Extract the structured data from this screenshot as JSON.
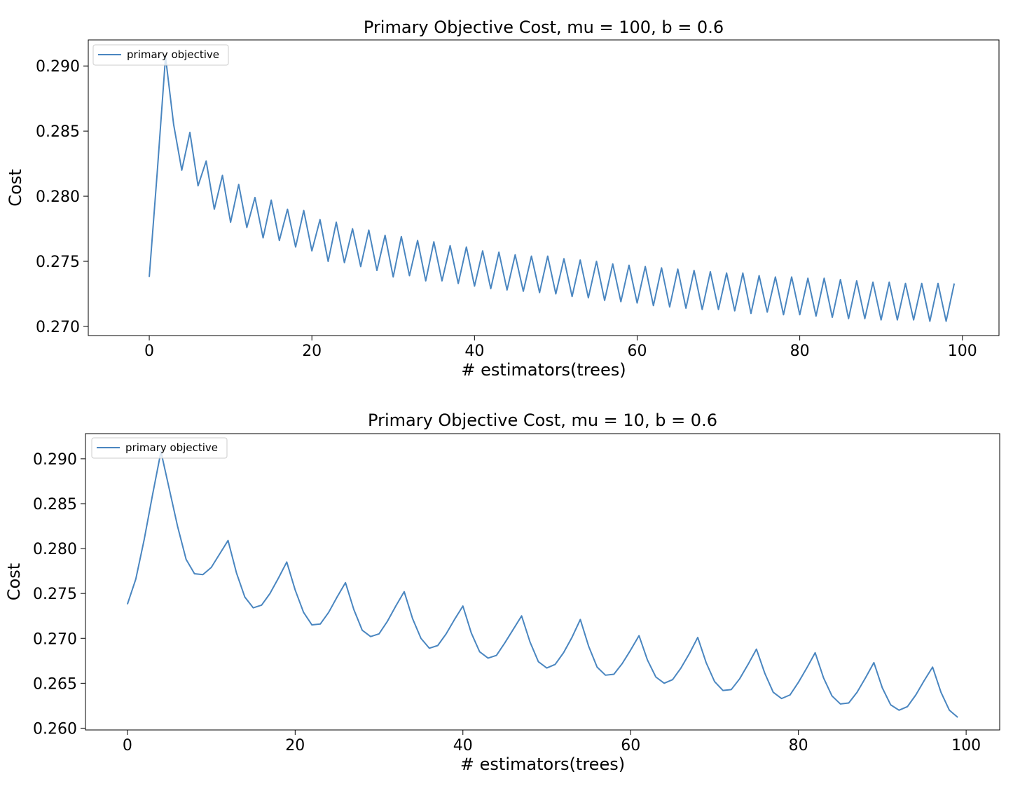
{
  "chart_data": [
    {
      "type": "line",
      "title": "Primary Objective Cost, mu = 100, b = 0.6",
      "xlabel": "# estimators(trees)",
      "ylabel": "Cost",
      "xlim": [
        -7.5,
        104.5
      ],
      "ylim": [
        0.2693,
        0.292
      ],
      "xticks": [
        0,
        20,
        40,
        60,
        80,
        100
      ],
      "xtick_labels": [
        "0",
        "20",
        "40",
        "60",
        "80",
        "100"
      ],
      "yticks": [
        0.27,
        0.275,
        0.28,
        0.285,
        0.29
      ],
      "ytick_labels": [
        "0.270",
        "0.275",
        "0.280",
        "0.285",
        "0.290"
      ],
      "grid": false,
      "legend_position": "top-left",
      "color": "#4a86c0",
      "series": [
        {
          "name": "primary objective",
          "x": [
            0,
            1,
            2,
            3,
            4,
            5,
            6,
            7,
            8,
            9,
            10,
            11,
            12,
            13,
            14,
            15,
            16,
            17,
            18,
            19,
            20,
            21,
            22,
            23,
            24,
            25,
            26,
            27,
            28,
            29,
            30,
            31,
            32,
            33,
            34,
            35,
            36,
            37,
            38,
            39,
            40,
            41,
            42,
            43,
            44,
            45,
            46,
            47,
            48,
            49,
            50,
            51,
            52,
            53,
            54,
            55,
            56,
            57,
            58,
            59,
            60,
            61,
            62,
            63,
            64,
            65,
            66,
            67,
            68,
            69,
            70,
            71,
            72,
            73,
            74,
            75,
            76,
            77,
            78,
            79,
            80,
            81,
            82,
            83,
            84,
            85,
            86,
            87,
            88,
            89,
            90,
            91,
            92,
            93,
            94,
            95,
            96,
            97,
            98,
            99
          ],
          "y": [
            0.2738,
            0.282,
            0.2907,
            0.2855,
            0.282,
            0.2849,
            0.2808,
            0.2827,
            0.279,
            0.2816,
            0.278,
            0.2809,
            0.2776,
            0.2799,
            0.2768,
            0.2797,
            0.2766,
            0.279,
            0.2761,
            0.2789,
            0.2758,
            0.2782,
            0.275,
            0.278,
            0.2749,
            0.2775,
            0.2746,
            0.2774,
            0.2743,
            0.277,
            0.2738,
            0.2769,
            0.2739,
            0.2766,
            0.2735,
            0.2765,
            0.2735,
            0.2762,
            0.2733,
            0.2761,
            0.2731,
            0.2758,
            0.2729,
            0.2757,
            0.2728,
            0.2755,
            0.2727,
            0.2754,
            0.2726,
            0.2754,
            0.2725,
            0.2752,
            0.2723,
            0.2751,
            0.2722,
            0.275,
            0.272,
            0.2748,
            0.2719,
            0.2747,
            0.2718,
            0.2746,
            0.2716,
            0.2745,
            0.2715,
            0.2744,
            0.2714,
            0.2743,
            0.2713,
            0.2742,
            0.2713,
            0.2741,
            0.2712,
            0.2741,
            0.271,
            0.2739,
            0.2711,
            0.2738,
            0.2709,
            0.2738,
            0.2709,
            0.2737,
            0.2708,
            0.2737,
            0.2707,
            0.2736,
            0.2706,
            0.2735,
            0.2706,
            0.2734,
            0.2705,
            0.2734,
            0.2705,
            0.2733,
            0.2705,
            0.2733,
            0.2704,
            0.2733,
            0.2704,
            0.2733
          ]
        }
      ]
    },
    {
      "type": "line",
      "title": "Primary Objective Cost, mu = 10, b = 0.6",
      "xlabel": "# estimators(trees)",
      "ylabel": "Cost",
      "xlim": [
        -5,
        104
      ],
      "ylim": [
        0.2598,
        0.2928
      ],
      "xticks": [
        0,
        20,
        40,
        60,
        80,
        100
      ],
      "xtick_labels": [
        "0",
        "20",
        "40",
        "60",
        "80",
        "100"
      ],
      "yticks": [
        0.26,
        0.265,
        0.27,
        0.275,
        0.28,
        0.285,
        0.29
      ],
      "ytick_labels": [
        "0.260",
        "0.265",
        "0.270",
        "0.275",
        "0.280",
        "0.285",
        "0.290"
      ],
      "grid": false,
      "legend_position": "top-left",
      "color": "#4a86c0",
      "series": [
        {
          "name": "primary objective",
          "x": [
            0,
            1,
            2,
            3,
            4,
            5,
            6,
            7,
            8,
            9,
            10,
            11,
            12,
            13,
            14,
            15,
            16,
            17,
            18,
            19,
            20,
            21,
            22,
            23,
            24,
            25,
            26,
            27,
            28,
            29,
            30,
            31,
            32,
            33,
            34,
            35,
            36,
            37,
            38,
            39,
            40,
            41,
            42,
            43,
            44,
            45,
            46,
            47,
            48,
            49,
            50,
            51,
            52,
            53,
            54,
            55,
            56,
            57,
            58,
            59,
            60,
            61,
            62,
            63,
            64,
            65,
            66,
            67,
            68,
            69,
            70,
            71,
            72,
            73,
            74,
            75,
            76,
            77,
            78,
            79,
            80,
            81,
            82,
            83,
            84,
            85,
            86,
            87,
            88,
            89,
            90,
            91,
            92,
            93,
            94,
            95,
            96,
            97,
            98,
            99
          ],
          "y": [
            0.2738,
            0.2766,
            0.281,
            0.286,
            0.2908,
            0.2866,
            0.2824,
            0.2788,
            0.2772,
            0.2771,
            0.2779,
            0.2794,
            0.2809,
            0.2773,
            0.2746,
            0.2734,
            0.2737,
            0.275,
            0.2767,
            0.2785,
            0.2754,
            0.2729,
            0.2715,
            0.2716,
            0.2729,
            0.2746,
            0.2762,
            0.2732,
            0.2709,
            0.2702,
            0.2705,
            0.2719,
            0.2736,
            0.2752,
            0.2722,
            0.27,
            0.2689,
            0.2692,
            0.2705,
            0.2721,
            0.2736,
            0.2706,
            0.2685,
            0.2678,
            0.2681,
            0.2695,
            0.271,
            0.2725,
            0.2696,
            0.2674,
            0.2667,
            0.2671,
            0.2684,
            0.2701,
            0.2721,
            0.2691,
            0.2668,
            0.2659,
            0.266,
            0.2672,
            0.2687,
            0.2703,
            0.2676,
            0.2657,
            0.265,
            0.2654,
            0.2667,
            0.2683,
            0.2701,
            0.2673,
            0.2652,
            0.2642,
            0.2643,
            0.2655,
            0.2671,
            0.2688,
            0.2661,
            0.264,
            0.2633,
            0.2637,
            0.2651,
            0.2667,
            0.2684,
            0.2656,
            0.2636,
            0.2627,
            0.2628,
            0.264,
            0.2656,
            0.2673,
            0.2645,
            0.2626,
            0.262,
            0.2624,
            0.2637,
            0.2653,
            0.2668,
            0.264,
            0.262,
            0.2612
          ]
        }
      ]
    }
  ]
}
